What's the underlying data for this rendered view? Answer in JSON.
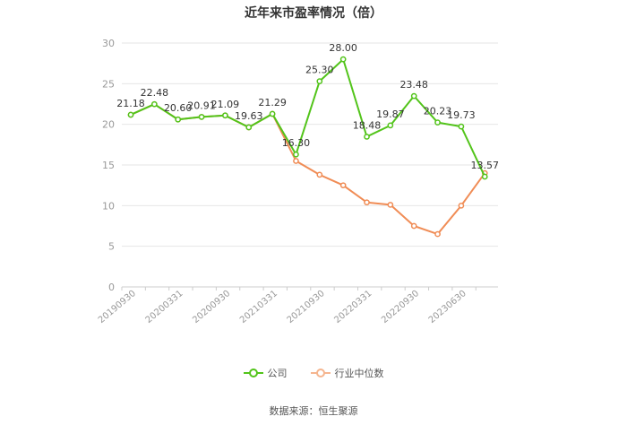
{
  "chart_data": {
    "type": "line",
    "title": "近年来市盈率情况（倍）",
    "x_tick_labels": [
      "20190930",
      "20200331",
      "20200930",
      "20210331",
      "20210930",
      "20220331",
      "20220930",
      "20230630"
    ],
    "y_ticks": [
      0,
      5,
      10,
      15,
      20,
      25,
      30
    ],
    "ylim": [
      0,
      30
    ],
    "grid": true,
    "legend_position": "bottom",
    "series": [
      {
        "name": "公司",
        "color": "#52c41a",
        "values": [
          21.18,
          22.48,
          20.6,
          20.91,
          21.09,
          19.63,
          21.29,
          16.3,
          25.3,
          28.0,
          18.48,
          19.87,
          23.48,
          20.23,
          19.73,
          13.57
        ],
        "labels": [
          "21.18",
          "22.48",
          "20.60",
          "20.91",
          "21.09",
          "19.63",
          "21.29",
          "16.30",
          "25.30",
          "28.00",
          "18.48",
          "19.87",
          "23.48",
          "20.23",
          "19.73",
          "13.57"
        ]
      },
      {
        "name": "行业中位数",
        "color": "#f08c55",
        "values": [
          21.18,
          22.48,
          20.6,
          20.91,
          21.09,
          19.63,
          21.29,
          15.5,
          13.8,
          12.5,
          10.4,
          10.1,
          7.5,
          6.5,
          10.0,
          14.0
        ]
      }
    ]
  },
  "source_text": "数据来源：恒生聚源"
}
